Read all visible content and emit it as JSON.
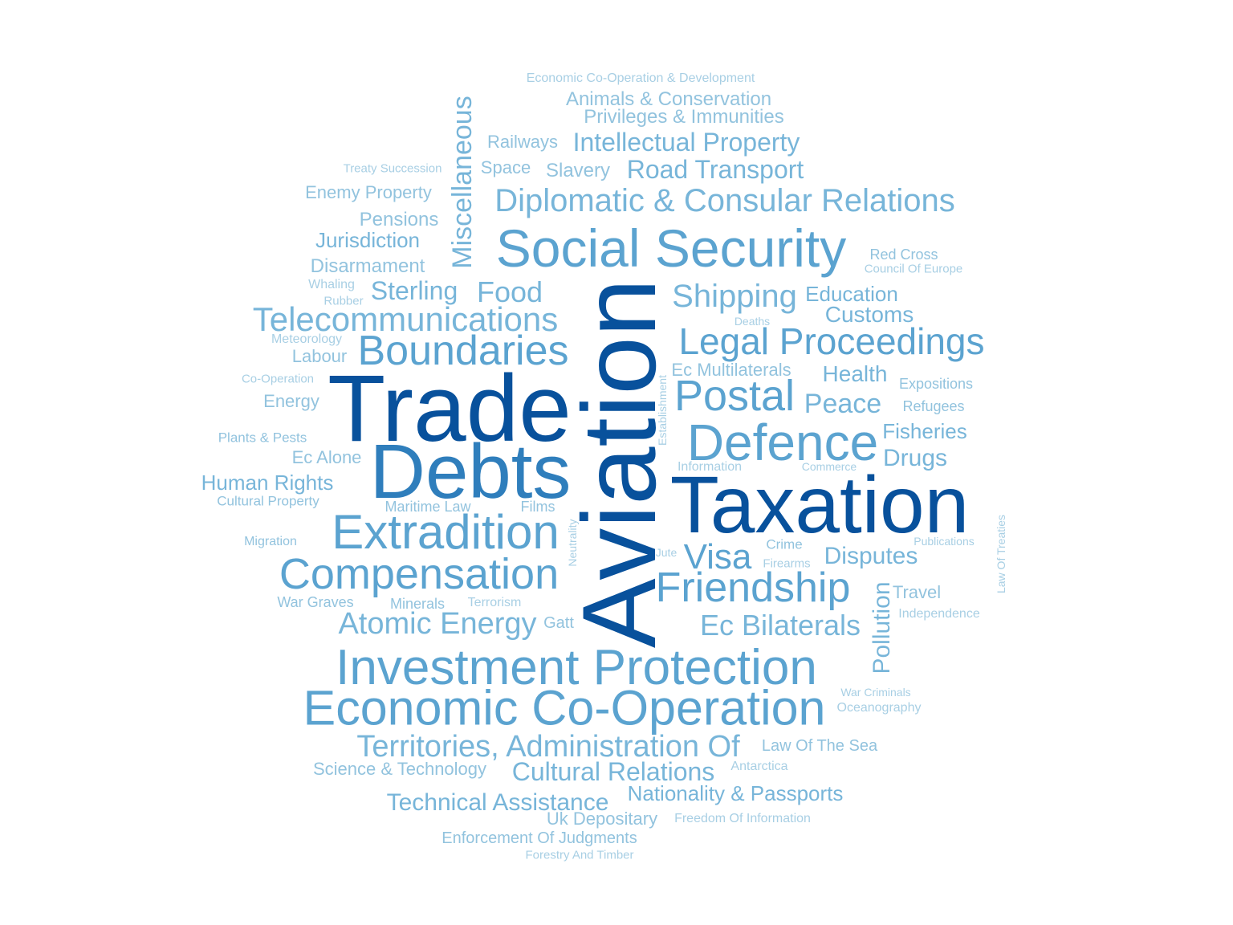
{
  "words": [
    {
      "text": "Aviation",
      "level": 1
    },
    {
      "text": "Trade",
      "level": 1
    },
    {
      "text": "Taxation",
      "level": 1
    },
    {
      "text": "Debts",
      "level": 2
    },
    {
      "text": "Social Security",
      "level": 3
    },
    {
      "text": "Investment Protection",
      "level": 3
    },
    {
      "text": "Economic Co-Operation",
      "level": 3
    },
    {
      "text": "Defence",
      "level": 3
    },
    {
      "text": "Extradition",
      "level": 3
    },
    {
      "text": "Compensation",
      "level": 3
    },
    {
      "text": "Boundaries",
      "level": 3
    },
    {
      "text": "Friendship",
      "level": 3
    },
    {
      "text": "Postal",
      "level": 3
    },
    {
      "text": "Legal Proceedings",
      "level": 3
    },
    {
      "text": "Visa",
      "level": 3
    },
    {
      "text": "Diplomatic & Consular Relations",
      "level": 4
    },
    {
      "text": "Telecommunications",
      "level": 4
    },
    {
      "text": "Shipping",
      "level": 4
    },
    {
      "text": "Atomic Energy",
      "level": 4
    },
    {
      "text": "Ec Bilaterals",
      "level": 4
    },
    {
      "text": "Territories, Administration Of",
      "level": 4
    },
    {
      "text": "Miscellaneous",
      "level": 4
    },
    {
      "text": "Food",
      "level": 4
    },
    {
      "text": "Sterling",
      "level": 4
    },
    {
      "text": "Road Transport",
      "level": 4
    },
    {
      "text": "Intellectual Property",
      "level": 4
    },
    {
      "text": "Cultural Relations",
      "level": 4
    },
    {
      "text": "Technical Assistance",
      "level": 4
    },
    {
      "text": "Pollution",
      "level": 4
    },
    {
      "text": "Disputes",
      "level": 4
    },
    {
      "text": "Peace",
      "level": 4
    },
    {
      "text": "Drugs",
      "level": 4
    },
    {
      "text": "Customs",
      "level": 4
    },
    {
      "text": "Health",
      "level": 4
    },
    {
      "text": "Fisheries",
      "level": 4
    },
    {
      "text": "Nationality & Passports",
      "level": 4
    },
    {
      "text": "Human Rights",
      "level": 4
    },
    {
      "text": "Jurisdiction",
      "level": 4
    },
    {
      "text": "Education",
      "level": 4
    },
    {
      "text": "Animals & Conservation",
      "level": 5
    },
    {
      "text": "Privileges & Immunities",
      "level": 5
    },
    {
      "text": "Enemy Property",
      "level": 5
    },
    {
      "text": "Pensions",
      "level": 5
    },
    {
      "text": "Disarmament",
      "level": 5
    },
    {
      "text": "Railways",
      "level": 5
    },
    {
      "text": "Space",
      "level": 5
    },
    {
      "text": "Slavery",
      "level": 5
    },
    {
      "text": "Labour",
      "level": 5
    },
    {
      "text": "Energy",
      "level": 5
    },
    {
      "text": "Ec Alone",
      "level": 5
    },
    {
      "text": "Ec Multilaterals",
      "level": 5
    },
    {
      "text": "Science & Technology",
      "level": 5
    },
    {
      "text": "Uk Depositary",
      "level": 5
    },
    {
      "text": "Enforcement Of Judgments",
      "level": 5
    },
    {
      "text": "Law Of The Sea",
      "level": 5
    },
    {
      "text": "Travel",
      "level": 5
    },
    {
      "text": "Red Cross",
      "level": 5
    },
    {
      "text": "Maritime Law",
      "level": 5
    },
    {
      "text": "Minerals",
      "level": 5
    },
    {
      "text": "War Graves",
      "level": 5
    },
    {
      "text": "Gatt",
      "level": 5
    },
    {
      "text": "Films",
      "level": 5
    },
    {
      "text": "Expositions",
      "level": 5
    },
    {
      "text": "Refugees",
      "level": 5
    },
    {
      "text": "Plants & Pests",
      "level": 5
    },
    {
      "text": "Cultural Property",
      "level": 5
    },
    {
      "text": "Migration",
      "level": 5
    },
    {
      "text": "Crime",
      "level": 5
    },
    {
      "text": "Economic Co-Operation & Development",
      "level": 6
    },
    {
      "text": "Treaty Succession",
      "level": 6
    },
    {
      "text": "Whaling",
      "level": 6
    },
    {
      "text": "Rubber",
      "level": 6
    },
    {
      "text": "Meteorology",
      "level": 6
    },
    {
      "text": "Co-Operation",
      "level": 6
    },
    {
      "text": "Council Of Europe",
      "level": 6
    },
    {
      "text": "Deaths",
      "level": 6
    },
    {
      "text": "Establishment",
      "level": 6
    },
    {
      "text": "Information",
      "level": 6
    },
    {
      "text": "Commerce",
      "level": 6
    },
    {
      "text": "Neutrality",
      "level": 6
    },
    {
      "text": "Jute",
      "level": 6
    },
    {
      "text": "Firearms",
      "level": 6
    },
    {
      "text": "Terrorism",
      "level": 6
    },
    {
      "text": "Publications",
      "level": 6
    },
    {
      "text": "Law Of Treaties",
      "level": 6
    },
    {
      "text": "Independence",
      "level": 6
    },
    {
      "text": "War Criminals",
      "level": 6
    },
    {
      "text": "Oceanography",
      "level": 6
    },
    {
      "text": "Antarctica",
      "level": 6
    },
    {
      "text": "Freedom Of Information",
      "level": 6
    },
    {
      "text": "Forestry And Timber",
      "level": 6
    }
  ],
  "palette": {
    "level1": "#08519c",
    "level2": "#2f7ebc",
    "level3": "#5ba3d0",
    "level4": "#77b5d9",
    "level5": "#92c3de",
    "level6": "#a8cfe4"
  }
}
